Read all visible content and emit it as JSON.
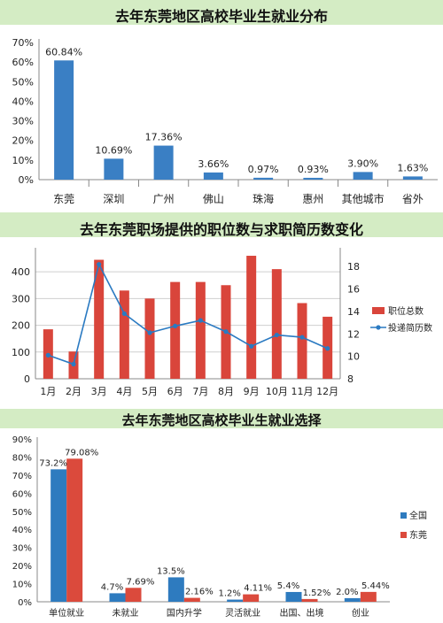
{
  "chart_data": [
    {
      "type": "bar",
      "title": "去年东莞地区高校毕业生就业分布",
      "categories": [
        "东莞",
        "深圳",
        "广州",
        "佛山",
        "珠海",
        "惠州",
        "其他城市",
        "省外"
      ],
      "values": [
        60.84,
        10.69,
        17.36,
        3.66,
        0.97,
        0.93,
        3.9,
        1.63
      ],
      "data_labels": [
        "60.84%",
        "10.69%",
        "17.36%",
        "3.66%",
        "0.97%",
        "0.93%",
        "3.90%",
        "1.63%"
      ],
      "yticks": [
        "0%",
        "10%",
        "20%",
        "30%",
        "40%",
        "50%",
        "60%",
        "70%"
      ],
      "ylim": [
        0,
        70
      ],
      "grid": false,
      "colors": {
        "bar": "#3a7fc4"
      }
    },
    {
      "type": "bar+line",
      "title": "去年东莞职场提供的职位数与求职简历数变化",
      "categories": [
        "1月",
        "2月",
        "3月",
        "4月",
        "5月",
        "6月",
        "7月",
        "8月",
        "9月",
        "10月",
        "11月",
        "12月"
      ],
      "series": [
        {
          "name": "职位总数",
          "type": "bar",
          "axis": "left",
          "values": [
            185,
            102,
            445,
            330,
            300,
            362,
            362,
            350,
            460,
            410,
            283,
            232
          ]
        },
        {
          "name": "投递简历数",
          "type": "line",
          "axis": "right",
          "values": [
            10.1,
            9.3,
            18.2,
            13.8,
            12.1,
            12.7,
            13.2,
            12.2,
            10.9,
            11.9,
            11.7,
            10.7
          ]
        }
      ],
      "yticks_left": [
        "0",
        "100",
        "200",
        "300",
        "400"
      ],
      "ylim_left": [
        0,
        470
      ],
      "yticks_right": [
        "8",
        "10",
        "12",
        "14",
        "16",
        "18"
      ],
      "ylim_right": [
        8,
        19.2
      ],
      "legend": "right",
      "grid": true,
      "colors": {
        "bar": "#d9453b",
        "line": "#2a7ac2"
      }
    },
    {
      "type": "bar",
      "title": "去年东莞地区高校毕业生就业选择",
      "categories": [
        "单位就业",
        "未就业",
        "国内升学",
        "灵活就业",
        "出国、出境",
        "创业"
      ],
      "series": [
        {
          "name": "全国",
          "values": [
            73.2,
            4.7,
            13.5,
            1.2,
            5.4,
            2.0
          ],
          "labels": [
            "73.2%",
            "4.7%",
            "13.5%",
            "1.2%",
            "5.4%",
            "2.0%"
          ]
        },
        {
          "name": "东莞",
          "values": [
            79.08,
            7.69,
            2.16,
            4.11,
            1.52,
            5.44
          ],
          "labels": [
            "79.08%",
            "7.69%",
            "2.16%",
            "4.11%",
            "1.52%",
            "5.44%"
          ]
        }
      ],
      "yticks": [
        "0%",
        "10%",
        "20%",
        "30%",
        "40%",
        "50%",
        "60%",
        "70%",
        "80%",
        "90%"
      ],
      "ylim": [
        0,
        90
      ],
      "legend": "right",
      "grid": false,
      "colors": {
        "全国": "#2e7bbf",
        "东莞": "#db4a3c"
      }
    }
  ]
}
